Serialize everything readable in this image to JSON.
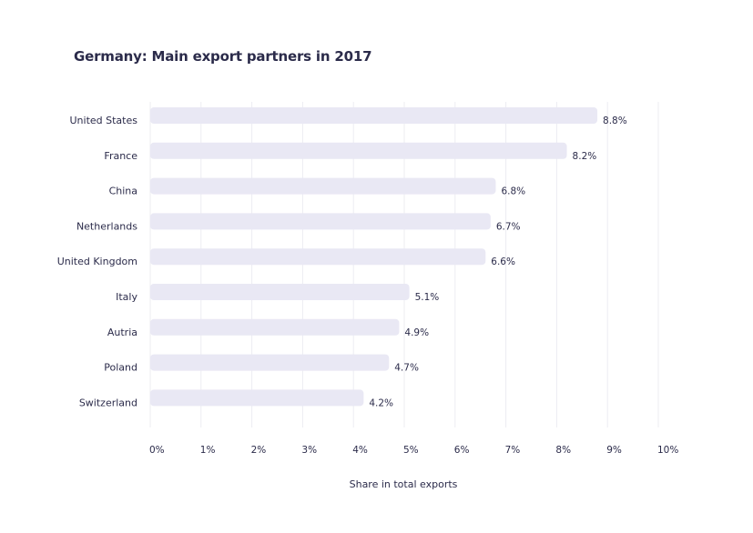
{
  "chart_data": {
    "type": "bar",
    "orientation": "horizontal",
    "title": "Germany: Main export partners in 2017",
    "xlabel": "Share in total exports",
    "ylabel": "",
    "categories": [
      "United States",
      "France",
      "China",
      "Netherlands",
      "United Kingdom",
      "Italy",
      "Autria",
      "Poland",
      "Switzerland"
    ],
    "values": [
      8.8,
      8.2,
      6.8,
      6.7,
      6.6,
      5.1,
      4.9,
      4.7,
      4.2
    ],
    "value_labels": [
      "8.8%",
      "8.2%",
      "6.8%",
      "6.7%",
      "6.6%",
      "5.1%",
      "4.9%",
      "4.7%",
      "4.2%"
    ],
    "xlim": [
      0,
      10
    ],
    "xticks": [
      0,
      1,
      2,
      3,
      4,
      5,
      6,
      7,
      8,
      9,
      10
    ],
    "xtick_labels": [
      "0%",
      "1%",
      "2%",
      "3%",
      "4%",
      "5%",
      "6%",
      "7%",
      "8%",
      "9%",
      "10%"
    ],
    "grid": true,
    "legend": "none",
    "colors": {
      "bar": "#e9e8f4",
      "text": "#2b2b4a",
      "grid": "#ececf2"
    }
  }
}
